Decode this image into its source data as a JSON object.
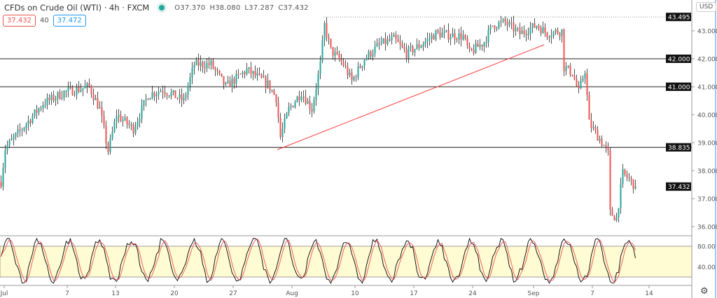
{
  "header": {
    "symbol": "CFDs on Crude Oil (WTI) · 4h · FXCM",
    "open": "O37.370",
    "high": "H38.080",
    "low": "L37.287",
    "close": "C37.432",
    "sell_price": "37.432",
    "spread": "40",
    "buy_price": "37.472",
    "market_status_icon": "market-open-dot"
  },
  "price_axis": {
    "currency": "USD",
    "ticks": [
      "43.000",
      "42.000",
      "41.000",
      "40.000",
      "39.000",
      "38.000",
      "37.000",
      "36.000"
    ],
    "range": [
      35.6,
      43.9
    ]
  },
  "level_labels": [
    "43.495",
    "42.000",
    "41.000",
    "38.835",
    "37.432"
  ],
  "levels": {
    "dotted_high": 43.495,
    "horizontal": [
      42.0,
      41.0,
      38.835
    ],
    "last_price": 37.432
  },
  "trendline": {
    "from": [
      132,
      38.75
    ],
    "to": [
      259,
      42.5
    ]
  },
  "oscillator": {
    "ticks": [
      "80.00",
      "40.00"
    ],
    "band": [
      20,
      80
    ]
  },
  "time_axis": {
    "labels": [
      "Jul",
      "7",
      "13",
      "20",
      "27",
      "Aug",
      "10",
      "17",
      "24",
      "Sep",
      "7",
      "14"
    ],
    "bars": [
      2,
      32,
      55,
      83,
      111,
      139,
      169,
      197,
      225,
      254,
      282,
      309
    ]
  },
  "price_waypoints": [
    [
      0,
      37.6
    ],
    [
      2,
      38.8
    ],
    [
      10,
      39.5
    ],
    [
      20,
      40.4
    ],
    [
      30,
      40.8
    ],
    [
      42,
      41.0
    ],
    [
      47,
      40.2
    ],
    [
      51,
      38.7
    ],
    [
      55,
      40.0
    ],
    [
      63,
      39.5
    ],
    [
      70,
      40.7
    ],
    [
      77,
      40.9
    ],
    [
      87,
      40.5
    ],
    [
      92,
      41.8
    ],
    [
      100,
      41.8
    ],
    [
      107,
      41.0
    ],
    [
      117,
      41.6
    ],
    [
      127,
      41.1
    ],
    [
      131,
      40.6
    ],
    [
      133,
      39.2
    ],
    [
      137,
      40.2
    ],
    [
      143,
      40.8
    ],
    [
      148,
      40.2
    ],
    [
      152,
      41.8
    ],
    [
      154,
      43.2
    ],
    [
      157,
      42.3
    ],
    [
      163,
      41.8
    ],
    [
      167,
      41.2
    ],
    [
      173,
      42.0
    ],
    [
      180,
      42.5
    ],
    [
      187,
      42.7
    ],
    [
      193,
      42.2
    ],
    [
      200,
      42.5
    ],
    [
      207,
      42.9
    ],
    [
      220,
      42.8
    ],
    [
      223,
      42.2
    ],
    [
      230,
      42.6
    ],
    [
      234,
      43.2
    ],
    [
      240,
      43.3
    ],
    [
      247,
      42.9
    ],
    [
      255,
      43.2
    ],
    [
      260,
      42.9
    ],
    [
      267,
      43.0
    ],
    [
      268,
      41.7
    ],
    [
      272,
      41.5
    ],
    [
      275,
      40.8
    ],
    [
      278,
      41.6
    ],
    [
      280,
      39.7
    ],
    [
      287,
      38.9
    ],
    [
      289,
      38.6
    ],
    [
      290,
      36.5
    ],
    [
      293,
      36.3
    ],
    [
      296,
      37.9
    ],
    [
      299,
      37.7
    ],
    [
      302,
      37.43
    ]
  ],
  "colors": {
    "up": "#26a69a",
    "down": "#ef5350",
    "wick": "#222",
    "band": "#fffbd2",
    "k_line": "#000000",
    "d_line": "#ef5350",
    "trend": "#ff3b3b"
  }
}
